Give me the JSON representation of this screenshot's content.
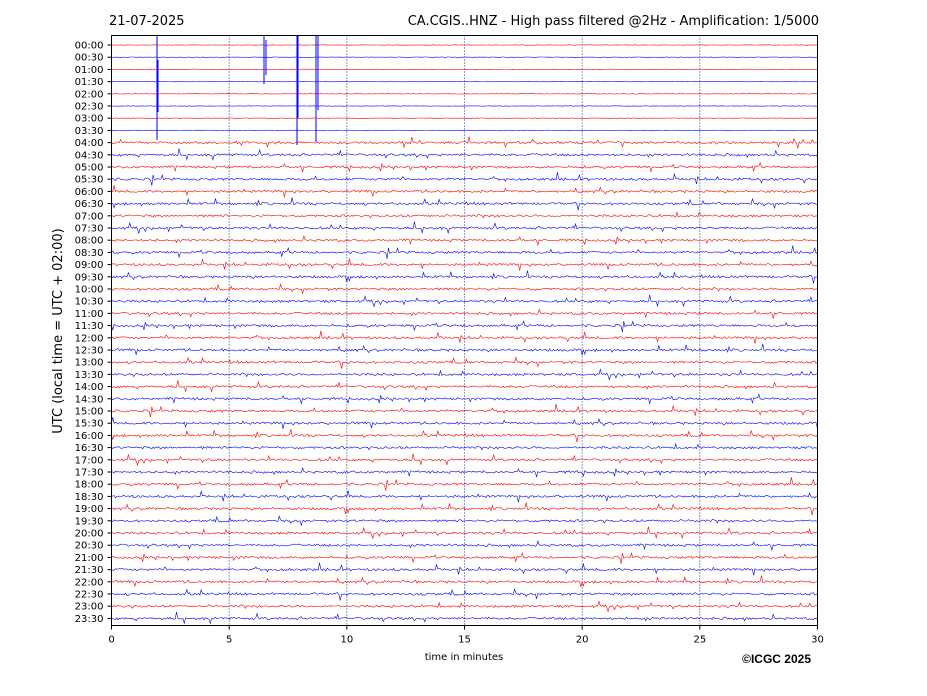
{
  "header": {
    "date": "21-07-2025",
    "title": "CA.CGIS..HNZ - High pass filtered @2Hz - Amplification: 1/5000"
  },
  "footer": {
    "copyright": "©ICGC 2025"
  },
  "colors": {
    "trace_a": "#ff0000",
    "trace_b": "#0000ff",
    "gridline": "#000080"
  },
  "chart_data": {
    "type": "line",
    "subtype": "helicorder",
    "title": "CA.CGIS..HNZ - High pass filtered @2Hz - Amplification: 1/5000",
    "xlabel": "time in minutes",
    "ylabel": "UTC (local time = UTC + 02:00)",
    "xlim": [
      0,
      30
    ],
    "x_ticks": [
      0,
      5,
      10,
      15,
      20,
      25,
      30
    ],
    "vertical_gridlines": [
      5,
      10,
      15,
      20,
      25
    ],
    "grid_style": "dotted",
    "row_labels": [
      "00:00",
      "00:30",
      "01:00",
      "01:30",
      "02:00",
      "02:30",
      "03:00",
      "03:30",
      "04:00",
      "04:30",
      "05:00",
      "05:30",
      "06:00",
      "06:30",
      "07:00",
      "07:30",
      "08:00",
      "08:30",
      "09:00",
      "09:30",
      "10:00",
      "10:30",
      "11:00",
      "11:30",
      "12:00",
      "12:30",
      "13:00",
      "13:30",
      "14:00",
      "14:30",
      "15:00",
      "15:30",
      "16:00",
      "16:30",
      "17:00",
      "17:30",
      "18:00",
      "18:30",
      "19:00",
      "19:30",
      "20:00",
      "20:30",
      "21:00",
      "21:30",
      "22:00",
      "22:30",
      "23:00",
      "23:30"
    ],
    "row_colors_cycle": [
      "red",
      "blue"
    ],
    "legend": "none"
  }
}
